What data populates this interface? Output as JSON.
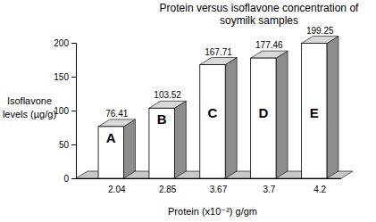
{
  "chart_data": {
    "type": "bar",
    "title": "Protein versus isoflavone concentration of soymilk samples",
    "x_label": "Protein (x10⁻²) g/gm",
    "y_label": "Isoflavone levels (µg/g)",
    "categories": [
      "2.04",
      "2.85",
      "3.67",
      "3.7",
      "4.2"
    ],
    "values": [
      76.41,
      103.52,
      167.71,
      177.46,
      199.25
    ],
    "annotations": [
      "A",
      "B",
      "C",
      "D",
      "E"
    ],
    "color": "#ffffff",
    "ylim": [
      0,
      200
    ],
    "yticks": [
      0,
      50,
      100,
      150,
      200
    ],
    "grid": false,
    "data_labels": true
  }
}
